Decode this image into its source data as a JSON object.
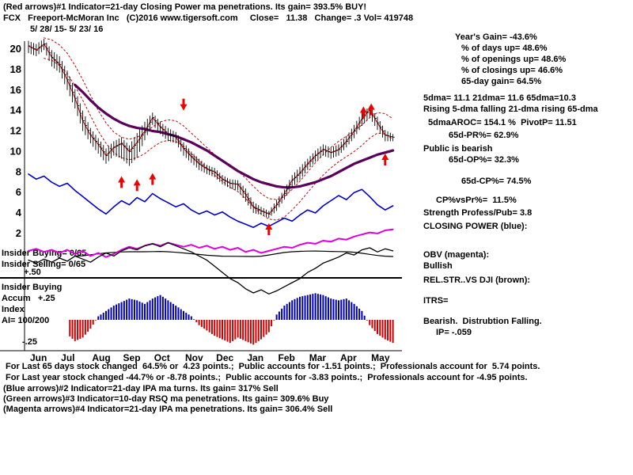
{
  "header": {
    "indicator_line": "(Red arrows)#1 Indicator=21-day Closing Power ma penetrations. Its gain= 393.5% BUY!",
    "title_line": "FCX   Freeport-McMoran Inc   (C)2016 www.tigersoft.com     Close=   11.38   Change= .3 Vol= 419748",
    "date_range": "5/ 28/ 15- 5/ 23/ 16"
  },
  "right_panel": {
    "lines": [
      "Year's Gain= -43.6%",
      "% of days up= 48.6%",
      "% of openings up= 48.6%",
      "% of closings up= 46.6%",
      "65-day gain= 64.5%",
      "5dma= 11.1 21dma= 11.6 65dma=10.3",
      "Rising 5-dma falling 21-dma rising 65-dma",
      "5dmaAROC= 154.1 %  PivotP= 11.51",
      "65d-PR%= 62.9%",
      "Public is bearish",
      "65d-OP%= 32.3%",
      "65d-CP%= 74.5%",
      "CP%vsPr%=  11.5%",
      "Strength Profess/Pub= 3.8",
      "CLOSING POWER (blue):",
      "OBV (magenta):",
      "Bullish",
      "REL.STR..VS DJI (brown):",
      "ITRS=",
      "Bearish.  Distrubtion Falling.",
      "IP= -.059"
    ]
  },
  "left_labels": {
    "insider_buying_count": "Insider Buying= 0/65",
    "insider_selling_count": "Insider Selling= 0/65",
    "plus50": "+.50",
    "insider_buying": "Insider Buying",
    "accum": "Accum   +.25",
    "index": "Index",
    "ai_ratio": "AI= 100/200",
    "minus25": "-.25"
  },
  "footer": {
    "lines": [
      "For Last 65 days stock changed  64.5% or  4.23 points.;  Public accounts for -1.51 points.;  Professionals account for  5.74 points.",
      "For Last year stock changed -44.7% or -8.78 points.;  Public accounts for -3.83 points.;  Professionals account for -4.95 points.",
      "(Blue arrows)#2 Indicator=21-day IPA ma turns. Its gain= 317% Sell",
      "(Green arrows)#3 Indicator=10-day RSQ ma penetrations. Its gain= 309.6% Buy",
      "(Magenta arrows)#4 Indicator=21-day IPA ma penetrations. Its gain= 306.4% Sell"
    ]
  },
  "chart_data": {
    "type": "line",
    "title": "FCX Freeport-McMoran Inc daily price with Closing Power, OBV, Rel.Str. and Accumulation Index",
    "x_categories": [
      "Jun",
      "Jul",
      "Aug",
      "Sep",
      "Oct",
      "Nov",
      "Dec",
      "Jan",
      "Feb",
      "Mar",
      "Apr",
      "May"
    ],
    "y_ticks": [
      20,
      18,
      16,
      14,
      12,
      10,
      8,
      6,
      4,
      2
    ],
    "ylim": [
      0,
      21
    ],
    "ai_axis": {
      "ticks": [
        0.5,
        0.25,
        -0.25
      ]
    },
    "legend": {
      "price": "daily high-low-close bars (black)",
      "closing_power": "CLOSING POWER (blue)",
      "obv": "OBV (magenta)",
      "rel_str": "REL.STR. VS DJI (brown/black)",
      "ma21": "21-day ma with bands (red dotted)",
      "ma65": "65-day ma (purple)",
      "ai": "Accum Index histogram"
    },
    "colors": {
      "price": "#000000",
      "closing_power": "#0000cc",
      "obv": "#dd00dd",
      "ma65": "#5a005a",
      "ma21_band": "#cc0000",
      "ma5": "#cc0000",
      "arrow": "#ee0000",
      "ai_pos": "#0000aa",
      "ai_neg": "#cc0000",
      "rel_str": "#000000"
    },
    "price": {
      "high": [
        20.8,
        20.5,
        21.0,
        19.9,
        19.3,
        17.9,
        16.1,
        14.0,
        12.3,
        11.3,
        10.3,
        11.0,
        11.4,
        10.6,
        11.8,
        12.9,
        13.8,
        12.9,
        12.3,
        11.9,
        10.9,
        10.0,
        9.3,
        8.7,
        8.4,
        7.7,
        7.3,
        7.2,
        6.4,
        5.1,
        4.6,
        4.2,
        5.3,
        6.3,
        7.7,
        8.5,
        9.3,
        10.1,
        10.7,
        10.4,
        10.7,
        11.5,
        12.6,
        13.8,
        14.4,
        13.4,
        12.1,
        11.7
      ],
      "low": [
        19.6,
        19.3,
        19.9,
        18.3,
        17.7,
        16.0,
        14.2,
        12.0,
        10.8,
        9.8,
        8.8,
        9.6,
        9.3,
        8.6,
        9.4,
        11.1,
        12.6,
        11.7,
        11.0,
        10.8,
        9.6,
        8.9,
        8.2,
        7.8,
        7.5,
        6.8,
        6.4,
        6.2,
        5.1,
        4.0,
        3.8,
        3.5,
        4.2,
        5.3,
        6.5,
        7.2,
        8.2,
        9.0,
        9.6,
        9.3,
        9.6,
        10.4,
        11.3,
        12.5,
        13.3,
        12.1,
        11.0,
        11.0
      ],
      "close": [
        20.3,
        19.9,
        20.5,
        19.2,
        18.5,
        17.0,
        15.2,
        13.0,
        11.6,
        10.7,
        9.6,
        10.4,
        10.8,
        10.0,
        10.9,
        12.0,
        13.3,
        12.4,
        11.7,
        11.4,
        10.3,
        9.5,
        8.8,
        8.3,
        8.0,
        7.3,
        6.9,
        6.8,
        5.8,
        4.6,
        4.2,
        3.9,
        4.8,
        5.9,
        7.2,
        7.9,
        8.8,
        9.6,
        10.2,
        9.9,
        10.2,
        11.0,
        12.0,
        13.2,
        14.1,
        12.8,
        11.6,
        11.4
      ]
    },
    "ma21": {
      "start": 2,
      "band_offset": 1.0,
      "values": [
        20.1,
        19.9,
        19.4,
        18.6,
        17.4,
        16.0,
        14.5,
        13.0,
        11.8,
        10.9,
        10.4,
        10.2,
        10.4,
        10.8,
        11.4,
        11.9,
        12.1,
        12.0,
        11.5,
        10.8,
        10.1,
        9.4,
        8.7,
        8.1,
        7.5,
        7.1,
        6.4,
        5.6,
        4.9,
        4.4,
        4.3,
        4.6,
        5.3,
        6.1,
        7.0,
        7.9,
        8.7,
        9.4,
        10.0,
        10.5,
        11.0,
        11.6,
        12.3,
        12.8,
        12.7,
        12.2
      ]
    },
    "ma65": {
      "start": 6,
      "values": [
        16.5,
        15.8,
        15.0,
        14.3,
        13.7,
        13.2,
        12.8,
        12.5,
        12.3,
        12.2,
        12.0,
        11.9,
        11.7,
        11.5,
        11.2,
        10.9,
        10.5,
        10.1,
        9.6,
        9.1,
        8.6,
        8.1,
        7.7,
        7.3,
        7.0,
        6.8,
        6.6,
        6.5,
        6.5,
        6.6,
        6.8,
        7.0,
        7.3,
        7.6,
        8.0,
        8.4,
        8.8,
        9.1,
        9.4,
        9.7,
        9.9,
        10.1
      ]
    },
    "closing_power": {
      "values": [
        7.8,
        7.3,
        7.6,
        7.0,
        6.6,
        6.9,
        6.2,
        5.6,
        5.0,
        4.4,
        3.9,
        4.6,
        5.2,
        4.8,
        5.5,
        5.1,
        5.9,
        5.4,
        5.0,
        4.6,
        4.9,
        4.3,
        3.9,
        4.2,
        3.8,
        4.1,
        3.6,
        3.2,
        2.9,
        2.6,
        3.0,
        2.7,
        3.1,
        3.5,
        3.2,
        3.8,
        4.3,
        4.0,
        4.7,
        5.2,
        5.7,
        5.3,
        6.0,
        6.3,
        5.6,
        4.8,
        4.3,
        4.7
      ]
    },
    "obv": {
      "values": [
        0.3,
        0.5,
        0.2,
        0.4,
        0.1,
        0.4,
        0.0,
        0.3,
        -0.2,
        0.1,
        -0.3,
        0.0,
        0.4,
        0.7,
        0.5,
        0.8,
        1.0,
        0.8,
        1.1,
        0.9,
        0.7,
        0.9,
        0.6,
        0.8,
        0.5,
        0.7,
        0.4,
        0.6,
        0.2,
        0.4,
        0.1,
        0.3,
        0.5,
        0.7,
        0.6,
        0.9,
        1.1,
        1.0,
        1.3,
        1.2,
        1.5,
        1.4,
        1.7,
        1.9,
        2.1,
        2.0,
        2.3,
        2.4
      ]
    },
    "rel_str": {
      "values": [
        -0.6,
        -0.9,
        -0.5,
        -0.8,
        -0.4,
        -0.7,
        -0.2,
        -0.5,
        -0.8,
        -0.3,
        0.1,
        -0.2,
        0.3,
        0.6,
        0.4,
        0.8,
        1.0,
        0.7,
        1.1,
        0.8,
        0.5,
        0.2,
        -0.2,
        -0.6,
        -1.2,
        -1.8,
        -2.4,
        -2.8,
        -3.4,
        -3.8,
        -3.5,
        -3.9,
        -3.6,
        -3.2,
        -2.8,
        -2.4,
        -1.8,
        -1.4,
        -0.9,
        -0.6,
        -0.3,
        0.1,
        -0.1,
        0.4,
        0.6,
        0.2,
        0.5,
        0.3
      ]
    },
    "ai": {
      "values": [
        -0.15,
        -0.2,
        -0.12,
        -0.18,
        -0.22,
        -0.16,
        -0.24,
        -0.2,
        -0.1,
        0.04,
        0.1,
        0.16,
        0.2,
        0.24,
        0.22,
        0.18,
        0.24,
        0.28,
        0.22,
        0.16,
        0.1,
        0.04,
        -0.06,
        -0.12,
        -0.18,
        -0.22,
        -0.26,
        -0.2,
        -0.24,
        -0.28,
        -0.22,
        -0.14,
        0.06,
        0.16,
        0.22,
        0.26,
        0.28,
        0.3,
        0.28,
        0.24,
        0.22,
        0.24,
        0.18,
        0.1,
        -0.06,
        -0.16,
        -0.22,
        -0.26
      ]
    },
    "arrows": [
      {
        "index": 12,
        "price": 7.6,
        "dir": "up"
      },
      {
        "index": 14,
        "price": 7.3,
        "dir": "up"
      },
      {
        "index": 16,
        "price": 7.9,
        "dir": "up"
      },
      {
        "index": 20,
        "price": 14.0,
        "dir": "down"
      },
      {
        "index": 31,
        "price": 3.0,
        "dir": "up"
      },
      {
        "index": 43.2,
        "price": 14.4,
        "dir": "up"
      },
      {
        "index": 44.2,
        "price": 14.7,
        "dir": "up"
      },
      {
        "index": 46,
        "price": 9.8,
        "dir": "up"
      }
    ]
  }
}
